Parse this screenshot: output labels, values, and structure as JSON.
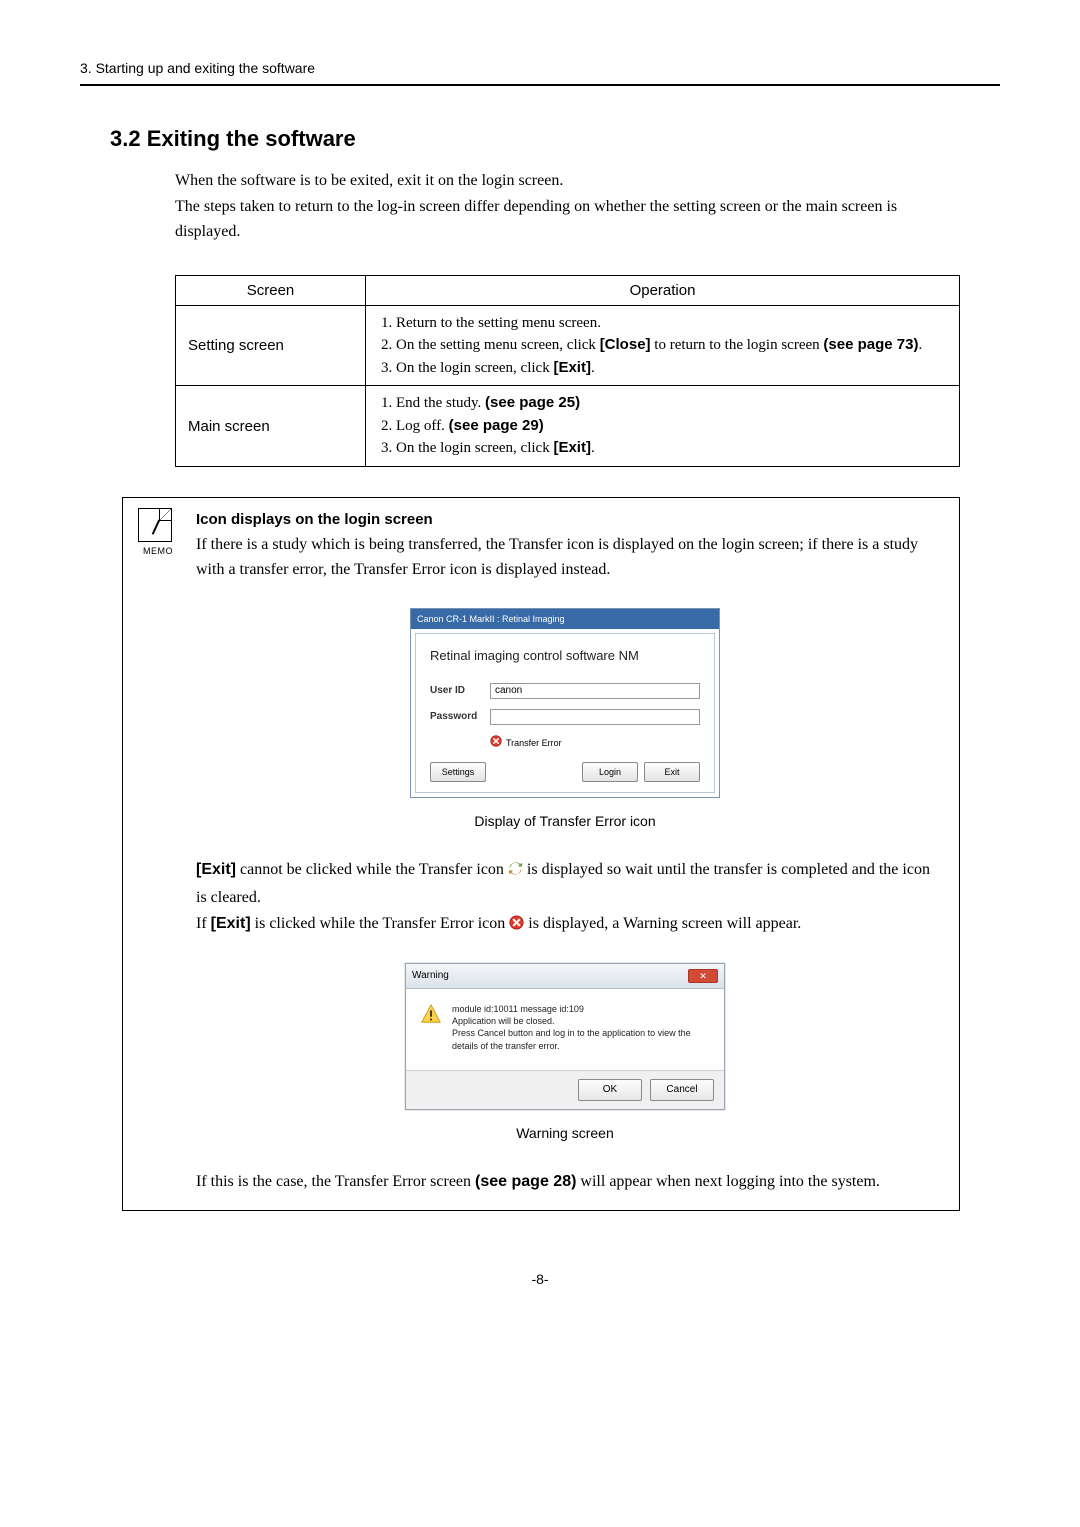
{
  "header": "3. Starting up and exiting the software",
  "section_title": "3.2 Exiting the software",
  "intro_line1": "When the software is to be exited, exit it on the login screen.",
  "intro_line2": "The steps taken to return to the log-in screen differ depending on whether the setting screen or the main screen is displayed.",
  "table": {
    "col1": "Screen",
    "col2": "Operation",
    "rows": [
      {
        "label": "Setting screen",
        "steps_html": "<li>Return to the setting menu screen.</li><li>On the setting menu screen, click <span class='bold-sans'>[Close]</span> to return to the login screen <span class='bold-sans'>(see page 73)</span>.</li><li>On the login screen, click <span class='bold-sans'>[Exit]</span>.</li>"
      },
      {
        "label": "Main screen",
        "steps_html": "<li>End the study. <span class='bold-sans'>(see page 25)</span></li><li>Log off. <span class='bold-sans'>(see page 29)</span></li><li>On the login screen, click <span class='bold-sans'>[Exit]</span>.</li>"
      }
    ]
  },
  "memo": {
    "icon_label": "MEMO",
    "title": "Icon displays on the login screen",
    "para1": "If there is a study which is being transferred, the Transfer icon is displayed on the login screen; if there is a study with a transfer error, the Transfer Error icon is displayed instead.",
    "login": {
      "titlebar": "Canon CR-1 MarkII : Retinal Imaging",
      "app_title": "Retinal imaging control software NM",
      "user_label": "User ID",
      "user_value": "canon",
      "pass_label": "Password",
      "status_text": "Transfer Error",
      "btn_settings": "Settings",
      "btn_login": "Login",
      "btn_exit": "Exit"
    },
    "caption1": "Display of Transfer Error icon",
    "para2_pre": "[Exit]",
    "para2_a": " cannot be clicked while the Transfer icon ",
    "para2_b": " is displayed so wait until the transfer is completed and the icon is cleared.",
    "para3_a": "If ",
    "para3_pre": "[Exit]",
    "para3_b": " is clicked while the Transfer Error icon ",
    "para3_c": " is displayed, a Warning screen will appear.",
    "warn": {
      "title": "Warning",
      "line1": "module id:10011 message id:109",
      "line2": "Application will be closed.",
      "line3": "Press Cancel button and log in to the application to view the details of the transfer error.",
      "ok": "OK",
      "cancel": "Cancel"
    },
    "caption2": "Warning screen",
    "para4_a": "If this is the case, the Transfer Error screen ",
    "para4_b": "(see page 28)",
    "para4_c": " will appear when next logging into the system."
  },
  "page_number": "-8-"
}
